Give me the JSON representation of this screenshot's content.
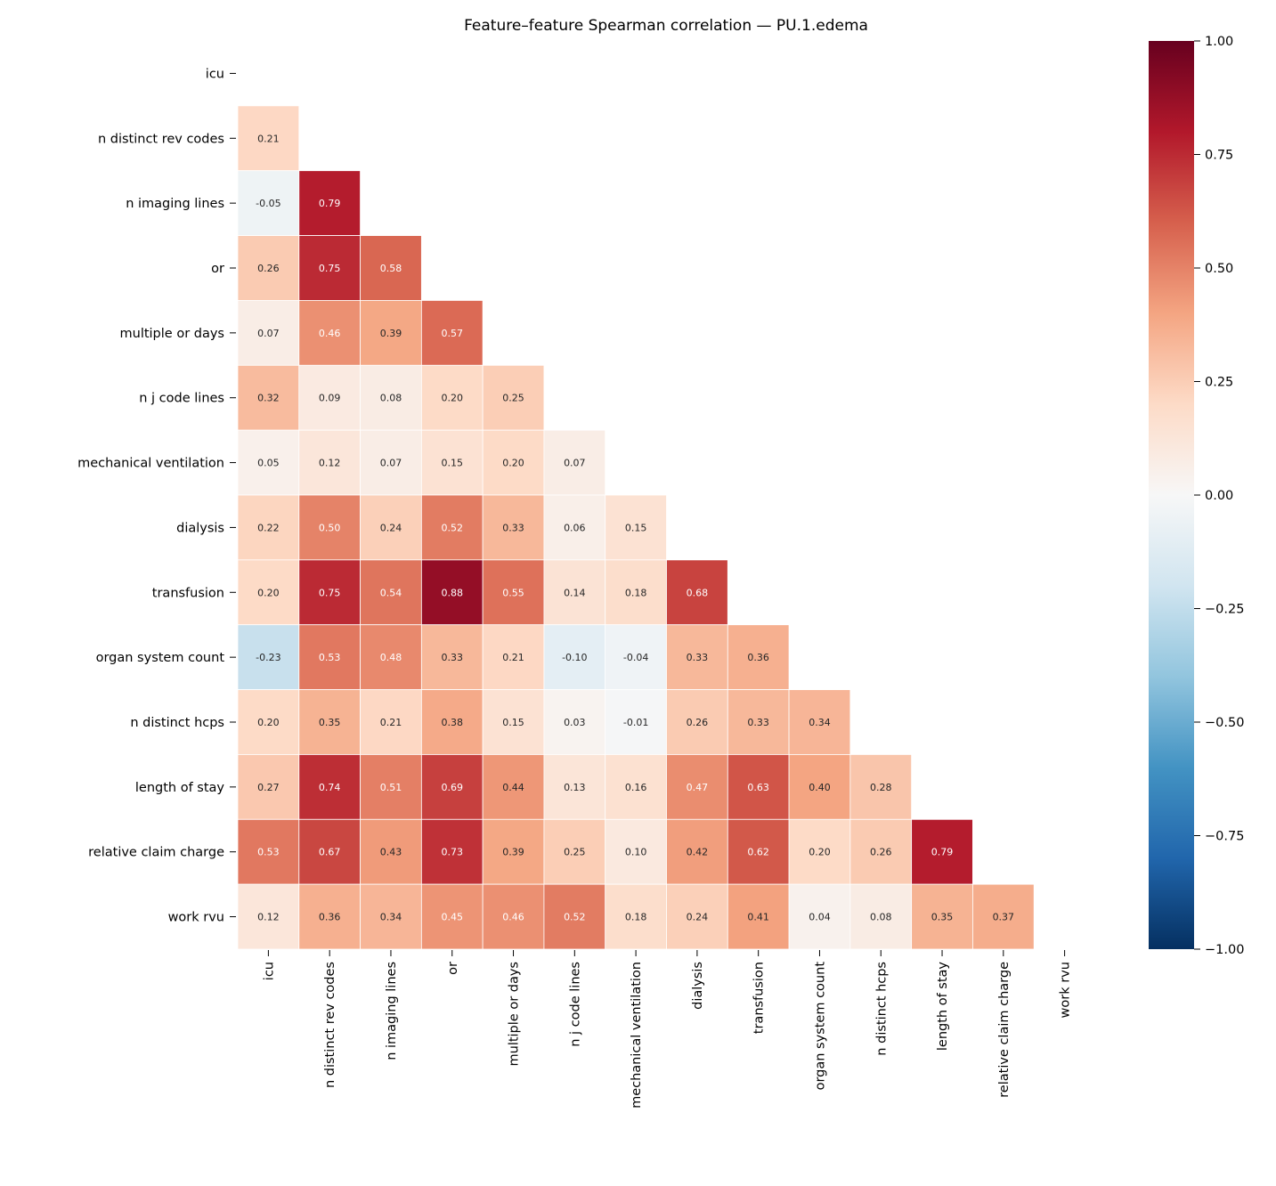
{
  "chart_data": {
    "type": "heatmap",
    "title": "Feature–feature Spearman correlation — PU.1.edema",
    "labels": [
      "icu",
      "n distinct rev codes",
      "n imaging lines",
      "or",
      "multiple or days",
      "n j code lines",
      "mechanical ventilation",
      "dialysis",
      "transfusion",
      "organ system count",
      "n distinct hcps",
      "length of stay",
      "relative claim charge",
      "work rvu"
    ],
    "mask": "upper triangle incl. diagonal",
    "lower_triangle_values": [
      [],
      [
        0.21
      ],
      [
        -0.05,
        0.79
      ],
      [
        0.26,
        0.75,
        0.58
      ],
      [
        0.07,
        0.46,
        0.39,
        0.57
      ],
      [
        0.32,
        0.09,
        0.08,
        0.2,
        0.25
      ],
      [
        0.05,
        0.12,
        0.07,
        0.15,
        0.2,
        0.07
      ],
      [
        0.22,
        0.5,
        0.24,
        0.52,
        0.33,
        0.06,
        0.15
      ],
      [
        0.2,
        0.75,
        0.54,
        0.88,
        0.55,
        0.14,
        0.18,
        0.68
      ],
      [
        -0.23,
        0.53,
        0.48,
        0.33,
        0.21,
        -0.1,
        -0.04,
        0.33,
        0.36
      ],
      [
        0.2,
        0.35,
        0.21,
        0.38,
        0.15,
        0.03,
        -0.01,
        0.26,
        0.33,
        0.34
      ],
      [
        0.27,
        0.74,
        0.51,
        0.69,
        0.44,
        0.13,
        0.16,
        0.47,
        0.63,
        0.4,
        0.28
      ],
      [
        0.53,
        0.67,
        0.43,
        0.73,
        0.39,
        0.25,
        0.1,
        0.42,
        0.62,
        0.2,
        0.26,
        0.79
      ],
      [
        0.12,
        0.36,
        0.34,
        0.45,
        0.46,
        0.52,
        0.18,
        0.24,
        0.41,
        0.04,
        0.08,
        0.35,
        0.37
      ]
    ],
    "colormap": "RdBu_r",
    "vmin": -1,
    "vmax": 1,
    "colorbar_ticks": [
      "1.00",
      "0.75",
      "0.50",
      "0.25",
      "0.00",
      "−0.25",
      "−0.50",
      "−0.75",
      "−1.00"
    ],
    "colorbar_tick_values": [
      1,
      0.75,
      0.5,
      0.25,
      0,
      -0.25,
      -0.5,
      -0.75,
      -1
    ]
  }
}
